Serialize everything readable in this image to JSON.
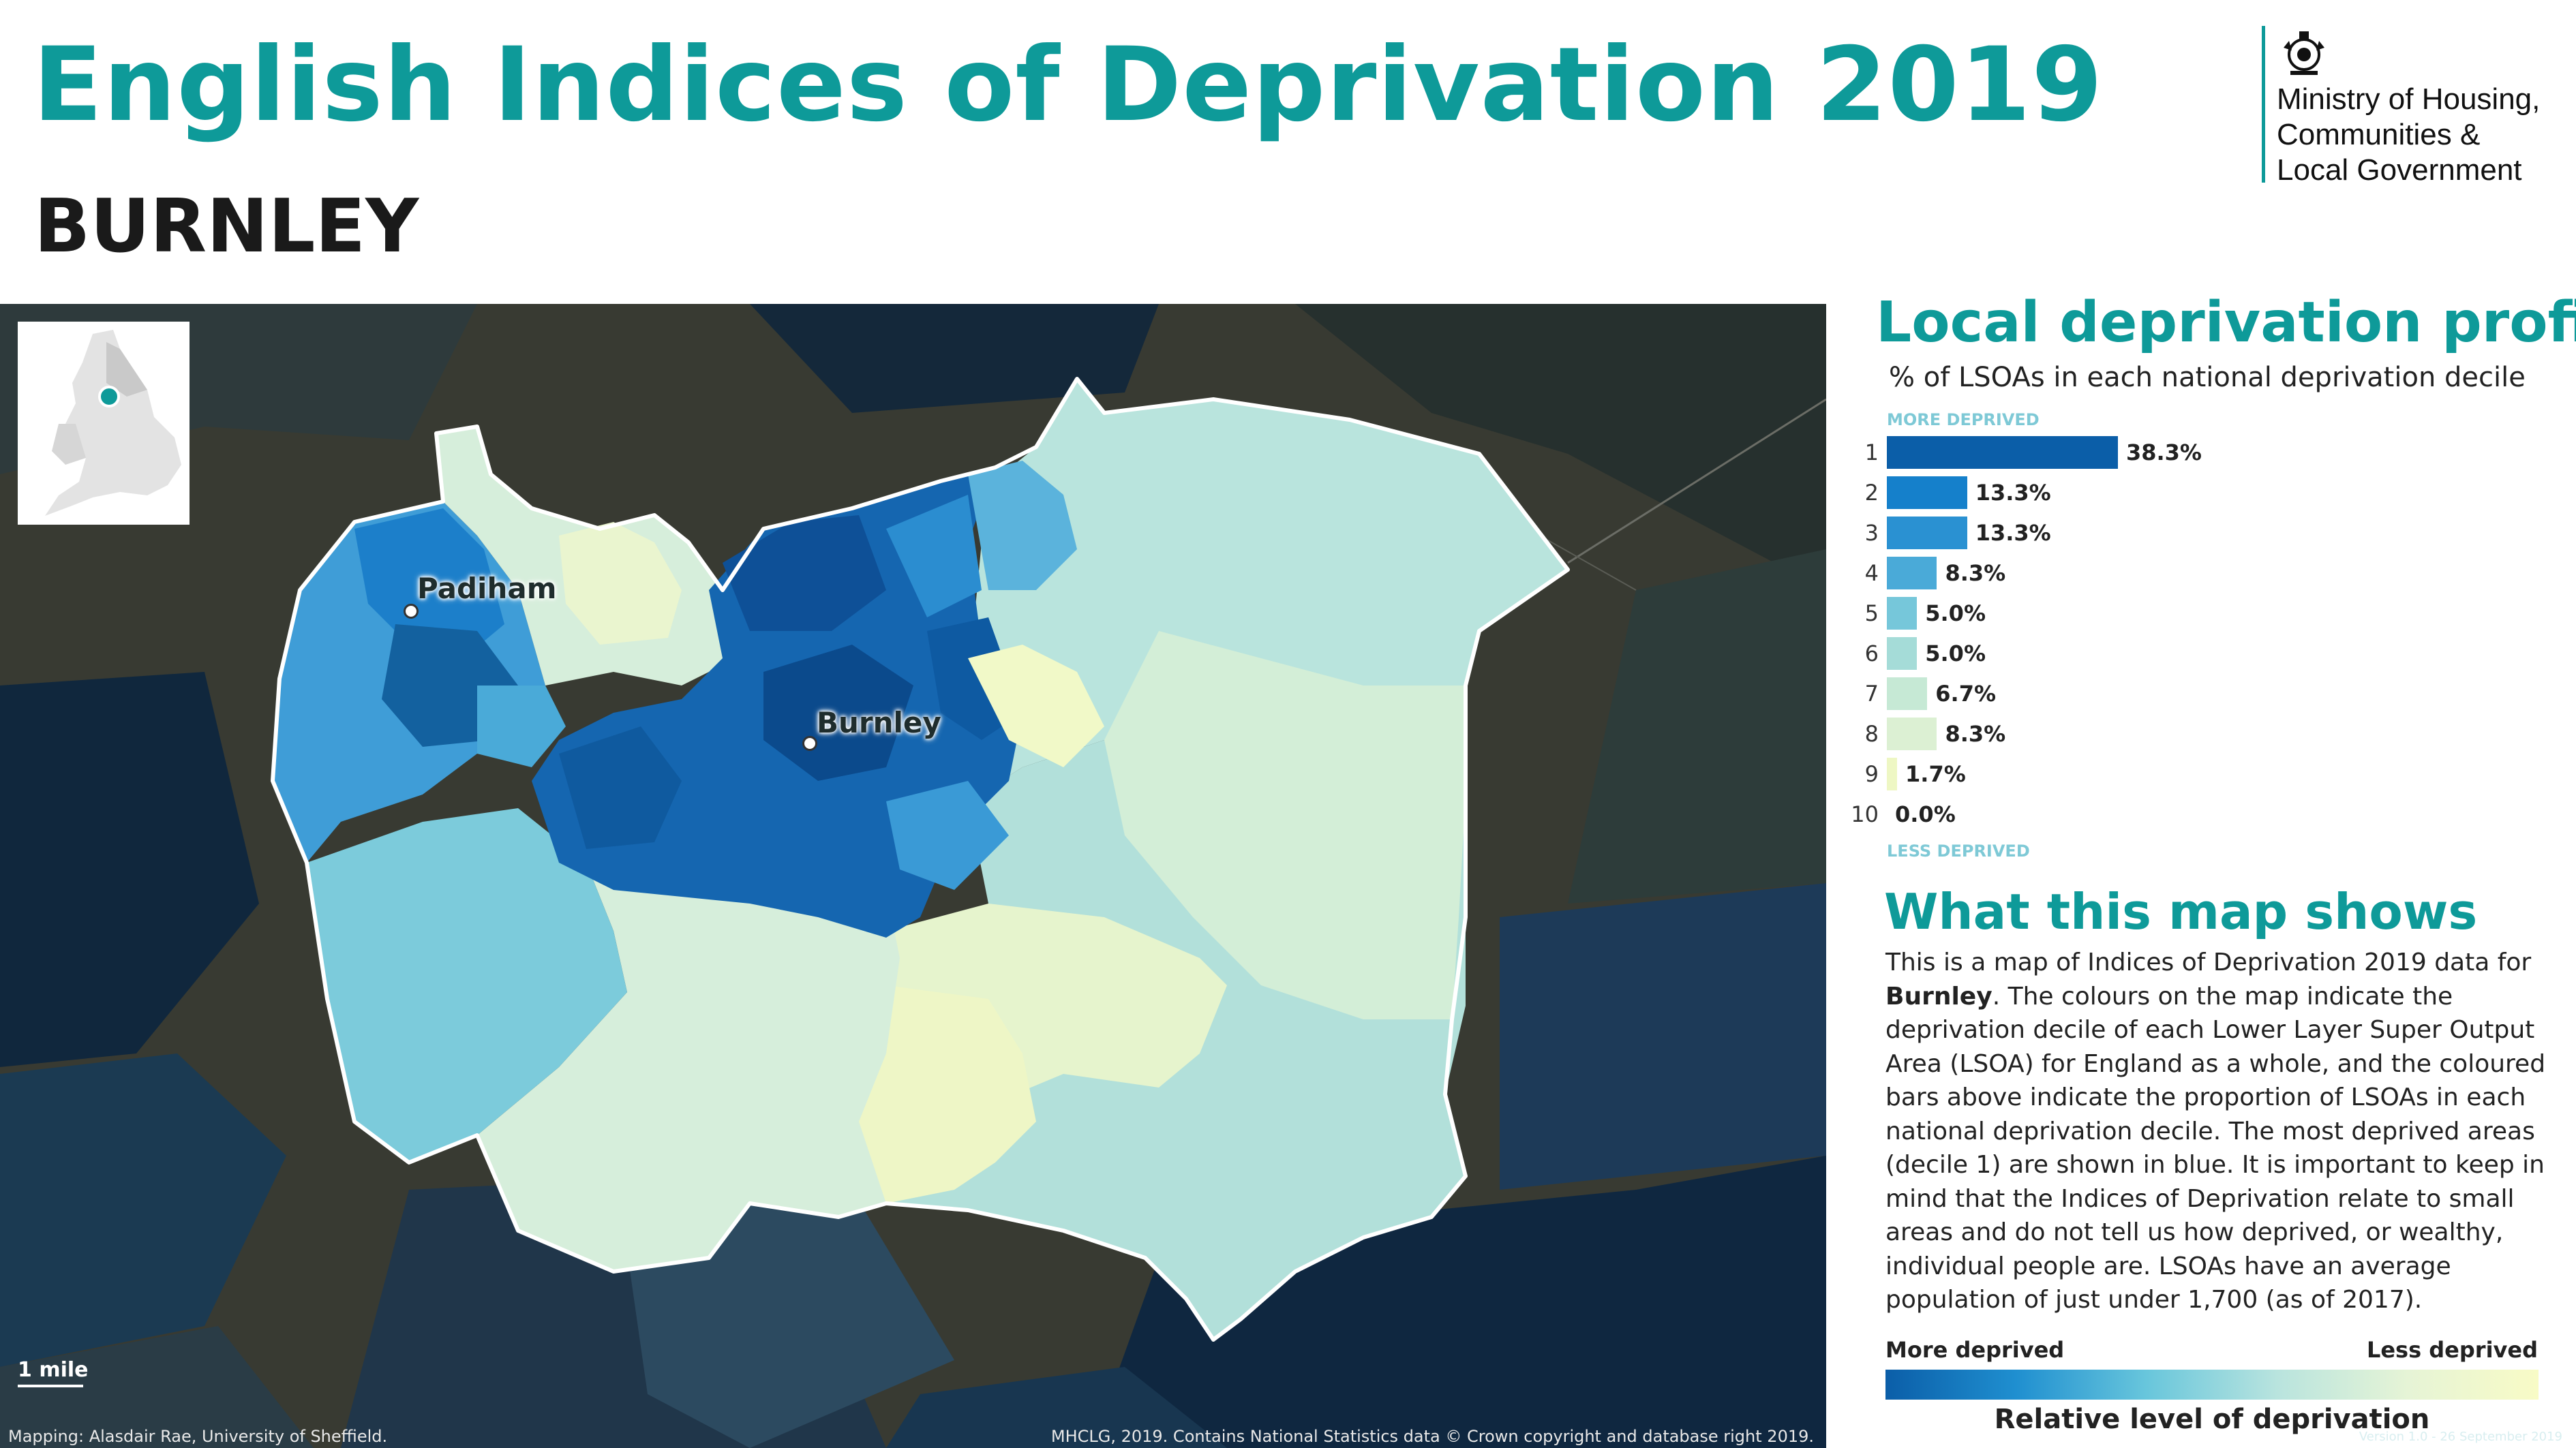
{
  "header": {
    "title": "English Indices of Deprivation 2019",
    "area_name": "BURNLEY"
  },
  "logo": {
    "org_line1": "Ministry of Housing,",
    "org_line2": "Communities &",
    "org_line3": "Local Government"
  },
  "map": {
    "towns": [
      {
        "name": "Padiham"
      },
      {
        "name": "Burnley"
      }
    ],
    "scale_label": "1 mile",
    "credit_left": "Mapping: Alasdair Rae, University of Sheffield.",
    "credit_right": "MHCLG, 2019. Contains National Statistics data © Crown copyright and database right 2019."
  },
  "profile": {
    "heading": "Local deprivation profile",
    "subtitle": "% of LSOAs in each national deprivation decile",
    "more_label": "MORE DEPRIVED",
    "less_label": "LESS DEPRIVED"
  },
  "chart_data": {
    "type": "bar",
    "orientation": "horizontal",
    "categories": [
      "1",
      "2",
      "3",
      "4",
      "5",
      "6",
      "7",
      "8",
      "9",
      "10"
    ],
    "values": [
      38.3,
      13.3,
      13.3,
      8.3,
      5.0,
      5.0,
      6.7,
      8.3,
      1.7,
      0.0
    ],
    "value_labels": [
      "38.3%",
      "13.3%",
      "13.3%",
      "8.3%",
      "5.0%",
      "5.0%",
      "6.7%",
      "8.3%",
      "1.7%",
      "0.0%"
    ],
    "colors": [
      "#0b5ea8",
      "#1580cb",
      "#2a91d2",
      "#4aaad8",
      "#76c7da",
      "#a5dcd8",
      "#c6e9d5",
      "#dcf0d3",
      "#eef7c4",
      "#f7fbc4"
    ]
  },
  "explainer": {
    "heading": "What this map shows",
    "p_start": "This is a map of Indices of Deprivation 2019 data for ",
    "p_bold": "Burnley",
    "p_rest": ". The colours on the map indicate the deprivation decile of each Lower Layer Super Output Area (LSOA) for England as a whole, and the coloured bars above indicate the proportion of LSOAs in each national deprivation decile. The most deprived areas (decile 1) are shown in blue. It is important to keep in mind that the Indices of Deprivation relate to small areas and do not tell us how deprived, or wealthy, individual people are. LSOAs have an average population of just under 1,700 (as of 2017)."
  },
  "legend": {
    "more": "More deprived",
    "less": "Less deprived",
    "title": "Relative level of deprivation"
  },
  "version": "Version 1.0 - 26 September 2019"
}
